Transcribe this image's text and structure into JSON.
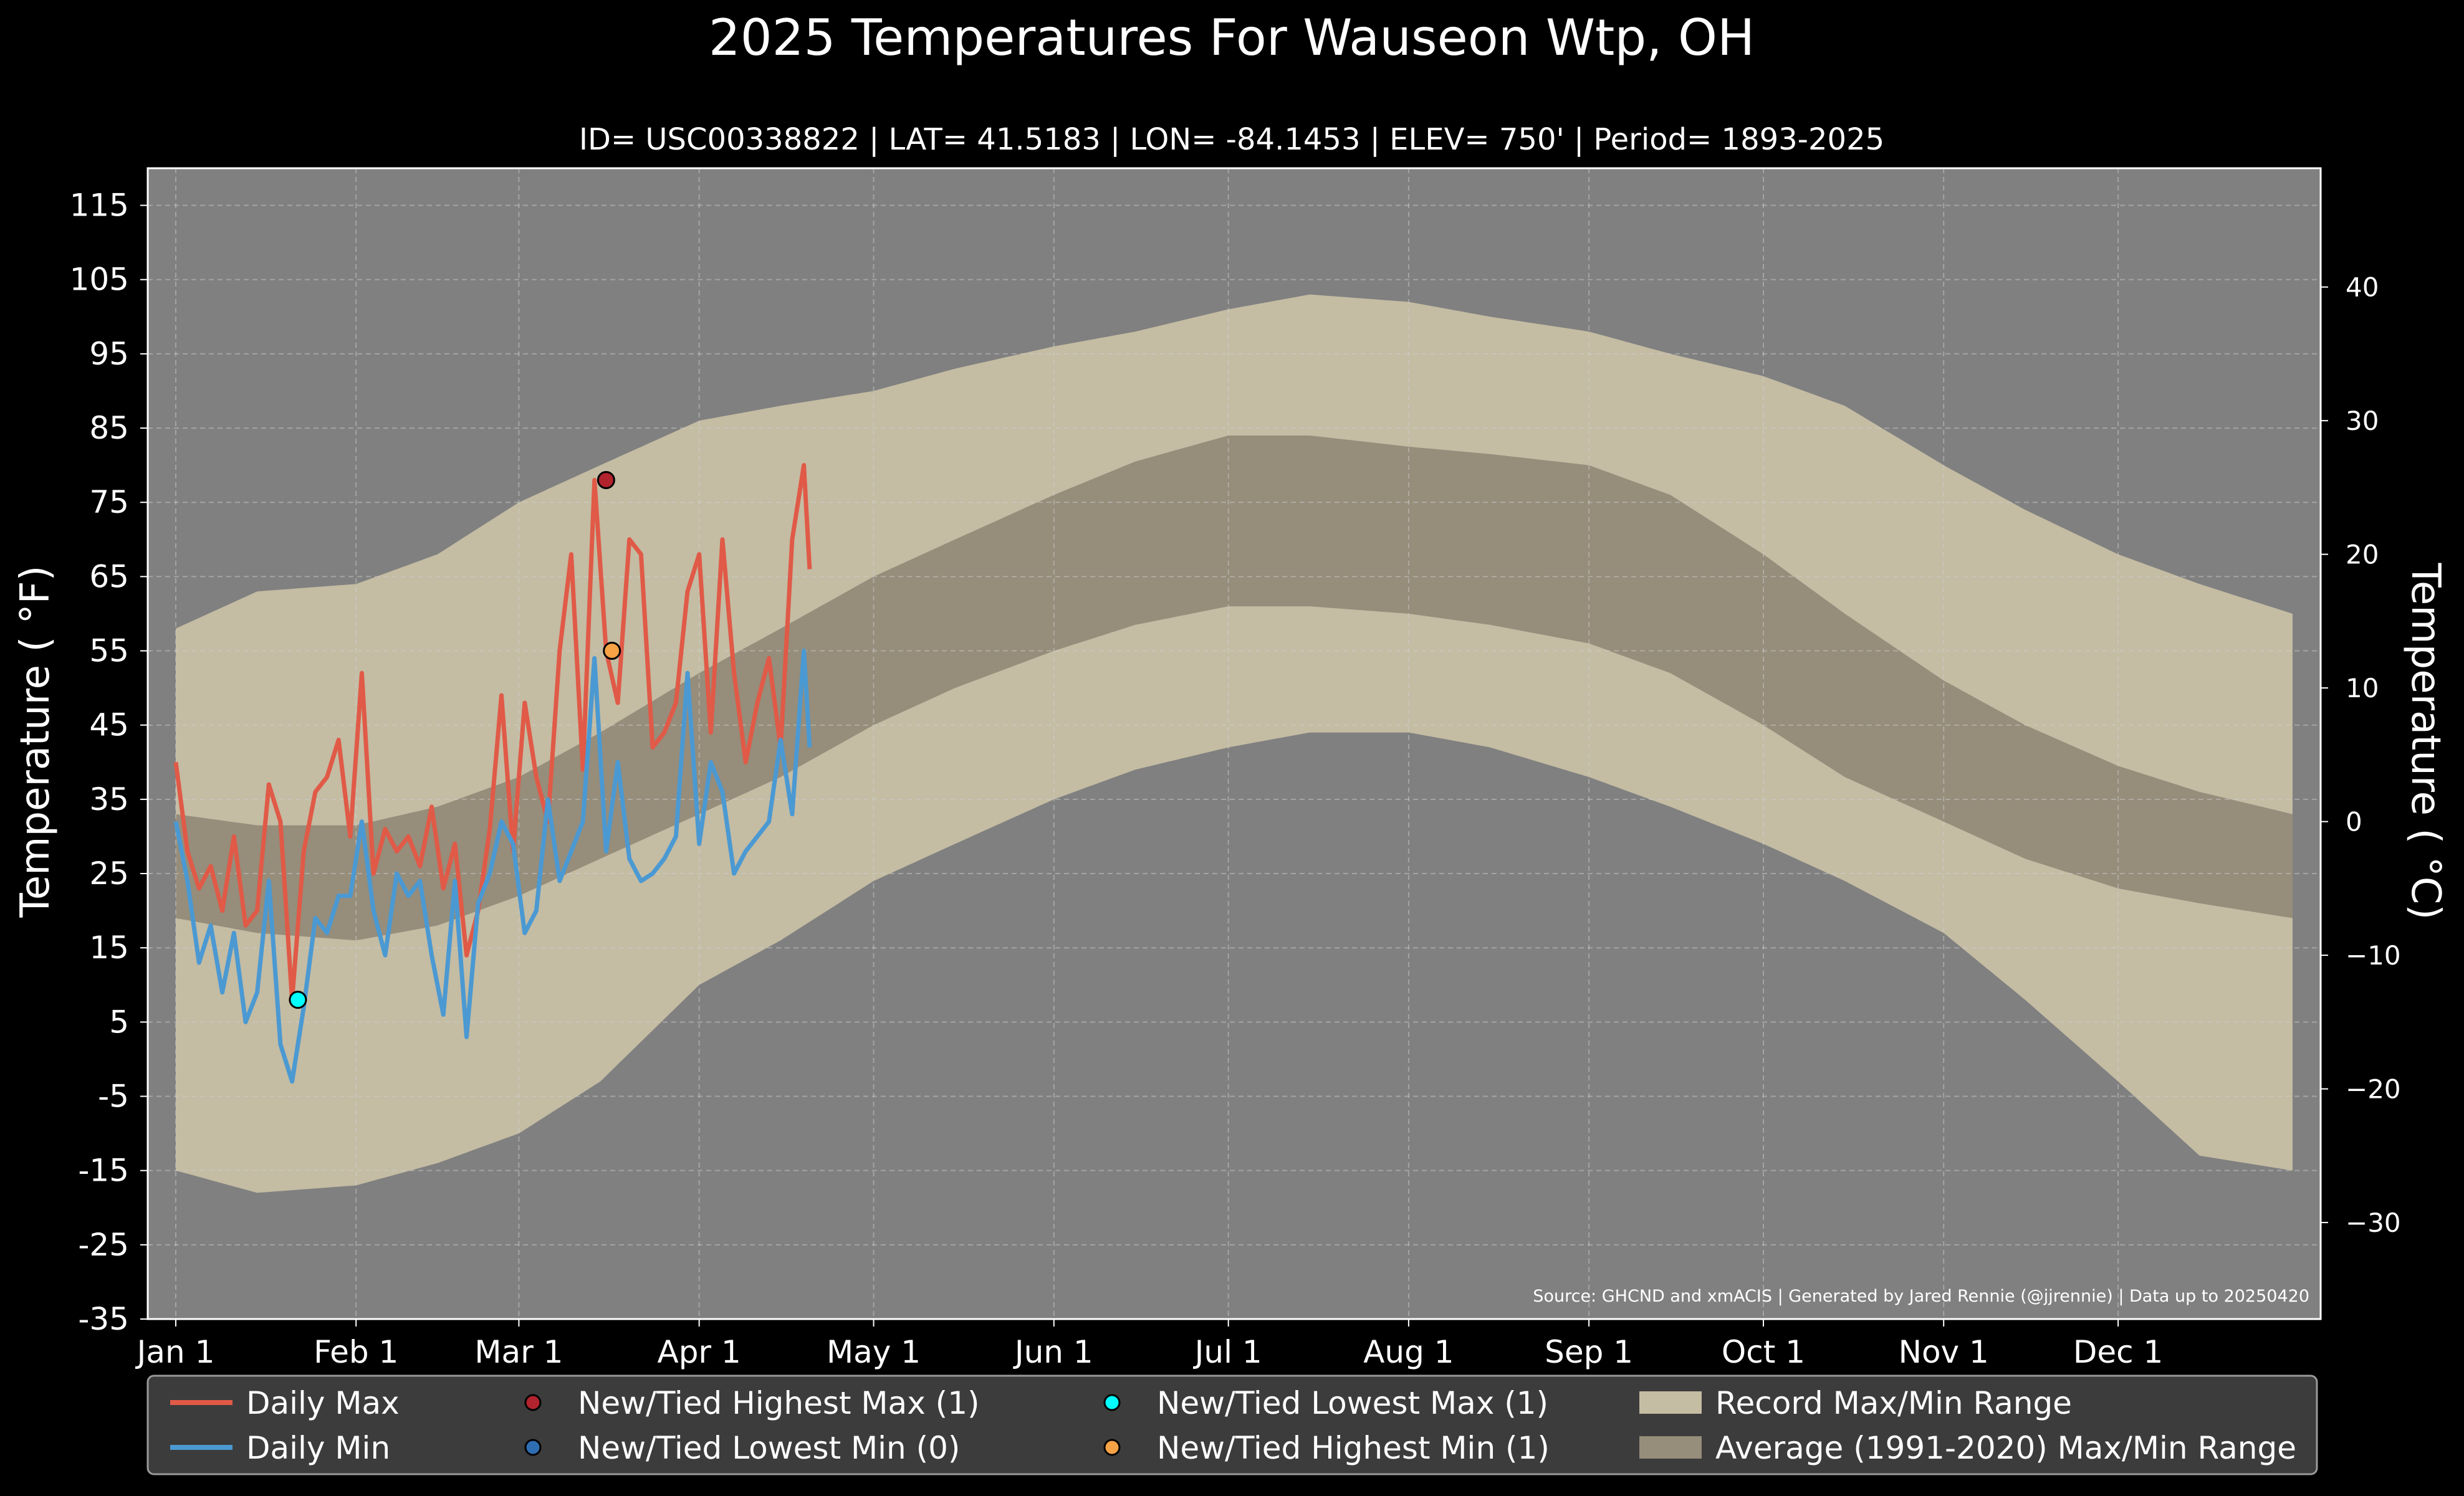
{
  "chart_data": {
    "type": "area",
    "title": "2025 Temperatures For Wauseon Wtp, OH",
    "subtitle": "ID= USC00338822 | LAT= 41.5183 | LON= -84.1453 | ELEV= 750' | Period= 1893-2025",
    "ylabel": "Temperature ( $^\\circ$F)",
    "ylabel_display": "Temperature ( °F)",
    "y2label_display": "Temperature ( °C)",
    "source": "Source: GHCND and xmACIS | Generated by Jared Rennie (@jjrennie) | Data up to 20250420",
    "ylim": [
      -35,
      120
    ],
    "yticks": [
      115,
      105,
      95,
      85,
      75,
      65,
      55,
      45,
      35,
      25,
      15,
      5,
      -5,
      -15,
      -25,
      -35
    ],
    "y2ticks": [
      40,
      30,
      20,
      10,
      0,
      -10,
      -20,
      -30
    ],
    "x_range_days": [
      1,
      365
    ],
    "month_labels": [
      "Jan 1",
      "Feb 1",
      "Mar 1",
      "Apr 1",
      "May 1",
      "Jun 1",
      "Jul 1",
      "Aug 1",
      "Sep 1",
      "Oct 1",
      "Nov 1",
      "Dec 1"
    ],
    "month_start_days": [
      1,
      32,
      60,
      91,
      121,
      152,
      182,
      213,
      244,
      274,
      305,
      335
    ],
    "grid": true,
    "legend_position": "bottom",
    "record_range": {
      "name": "Record Max/Min Range",
      "max_anchors": [
        [
          1,
          58
        ],
        [
          15,
          63
        ],
        [
          32,
          64
        ],
        [
          46,
          68
        ],
        [
          60,
          75
        ],
        [
          74,
          80
        ],
        [
          91,
          86
        ],
        [
          105,
          88
        ],
        [
          121,
          90
        ],
        [
          135,
          93
        ],
        [
          152,
          96
        ],
        [
          166,
          98
        ],
        [
          182,
          101
        ],
        [
          196,
          103
        ],
        [
          213,
          102
        ],
        [
          227,
          100
        ],
        [
          244,
          98
        ],
        [
          258,
          95
        ],
        [
          274,
          92
        ],
        [
          288,
          88
        ],
        [
          305,
          80
        ],
        [
          319,
          74
        ],
        [
          335,
          68
        ],
        [
          349,
          64
        ],
        [
          365,
          60
        ]
      ],
      "min_anchors": [
        [
          1,
          -15
        ],
        [
          15,
          -18
        ],
        [
          32,
          -17
        ],
        [
          46,
          -14
        ],
        [
          60,
          -10
        ],
        [
          74,
          -3
        ],
        [
          91,
          10
        ],
        [
          105,
          16
        ],
        [
          121,
          24
        ],
        [
          135,
          29
        ],
        [
          152,
          35
        ],
        [
          166,
          39
        ],
        [
          182,
          42
        ],
        [
          196,
          44
        ],
        [
          213,
          44
        ],
        [
          227,
          42
        ],
        [
          244,
          38
        ],
        [
          258,
          34
        ],
        [
          274,
          29
        ],
        [
          288,
          24
        ],
        [
          305,
          17
        ],
        [
          319,
          8
        ],
        [
          335,
          -3
        ],
        [
          349,
          -13
        ],
        [
          365,
          -15
        ]
      ]
    },
    "normal_range": {
      "name": "Average (1991-2020) Max/Min Range",
      "max_anchors": [
        [
          1,
          33
        ],
        [
          15,
          31.5
        ],
        [
          32,
          31.5
        ],
        [
          46,
          34
        ],
        [
          60,
          38
        ],
        [
          74,
          44
        ],
        [
          91,
          52
        ],
        [
          105,
          58
        ],
        [
          121,
          65
        ],
        [
          135,
          70
        ],
        [
          152,
          76
        ],
        [
          166,
          80.5
        ],
        [
          182,
          84
        ],
        [
          196,
          84
        ],
        [
          213,
          82.5
        ],
        [
          227,
          81.5
        ],
        [
          244,
          80
        ],
        [
          258,
          76
        ],
        [
          274,
          68
        ],
        [
          288,
          60
        ],
        [
          305,
          51
        ],
        [
          319,
          45
        ],
        [
          335,
          39.5
        ],
        [
          349,
          36
        ],
        [
          365,
          33
        ]
      ],
      "min_anchors": [
        [
          1,
          19
        ],
        [
          15,
          17
        ],
        [
          32,
          16
        ],
        [
          46,
          18
        ],
        [
          60,
          22
        ],
        [
          74,
          27
        ],
        [
          91,
          33
        ],
        [
          105,
          38
        ],
        [
          121,
          45
        ],
        [
          135,
          50
        ],
        [
          152,
          55
        ],
        [
          166,
          58.5
        ],
        [
          182,
          61
        ],
        [
          196,
          61
        ],
        [
          213,
          60
        ],
        [
          227,
          58.5
        ],
        [
          244,
          56
        ],
        [
          258,
          52
        ],
        [
          274,
          45
        ],
        [
          288,
          38
        ],
        [
          305,
          32
        ],
        [
          319,
          27
        ],
        [
          335,
          23
        ],
        [
          349,
          21
        ],
        [
          365,
          19
        ]
      ]
    },
    "series": [
      {
        "name": "Daily Max",
        "color": "#e05a47",
        "x": [
          1,
          3,
          5,
          7,
          9,
          11,
          13,
          15,
          17,
          19,
          21,
          23,
          25,
          27,
          29,
          31,
          33,
          35,
          37,
          39,
          41,
          43,
          45,
          47,
          49,
          51,
          53,
          55,
          57,
          59,
          61,
          63,
          65,
          67,
          69,
          71,
          73,
          75,
          77,
          79,
          81,
          83,
          85,
          87,
          89,
          91,
          93,
          95,
          97,
          99,
          101,
          103,
          105,
          107,
          109,
          110
        ],
        "values": [
          40,
          28,
          23,
          26,
          20,
          30,
          18,
          20,
          37,
          32,
          8,
          28,
          36,
          38,
          43,
          30,
          52,
          25,
          31,
          28,
          30,
          26,
          34,
          23,
          29,
          14,
          20,
          31,
          49,
          28,
          48,
          38,
          32,
          55,
          68,
          39,
          78,
          55,
          48,
          70,
          68,
          42,
          44,
          48,
          63,
          68,
          44,
          70,
          52,
          40,
          48,
          54,
          42,
          70,
          80,
          66
        ]
      },
      {
        "name": "Daily Min",
        "color": "#4b99d2",
        "x": [
          1,
          3,
          5,
          7,
          9,
          11,
          13,
          15,
          17,
          19,
          21,
          23,
          25,
          27,
          29,
          31,
          33,
          35,
          37,
          39,
          41,
          43,
          45,
          47,
          49,
          51,
          53,
          55,
          57,
          59,
          61,
          63,
          65,
          67,
          69,
          71,
          73,
          75,
          77,
          79,
          81,
          83,
          85,
          87,
          89,
          91,
          93,
          95,
          97,
          99,
          101,
          103,
          105,
          107,
          109,
          110
        ],
        "values": [
          32,
          24,
          13,
          18,
          9,
          17,
          5,
          9,
          24,
          2,
          -3,
          7,
          19,
          17,
          22,
          22,
          32,
          20,
          14,
          25,
          22,
          24,
          14,
          6,
          24,
          3,
          21,
          25,
          32,
          29,
          17,
          20,
          35,
          24,
          28,
          32,
          54,
          28,
          40,
          27,
          24,
          25,
          27,
          30,
          52,
          29,
          40,
          36,
          25,
          28,
          30,
          32,
          43,
          33,
          55,
          42
        ]
      }
    ],
    "markers": [
      {
        "name": "New/Tied Highest Max (1)",
        "color": "#b1232d",
        "x": [
          75
        ],
        "values": [
          78
        ]
      },
      {
        "name": "New/Tied Lowest Min (0)",
        "color": "#2f6db3",
        "x": [],
        "values": []
      },
      {
        "name": "New/Tied Lowest Max (1)",
        "color": "#00ffff",
        "x": [
          22
        ],
        "values": [
          8
        ]
      },
      {
        "name": "New/Tied Highest Min (1)",
        "color": "#f7a345",
        "x": [
          76
        ],
        "values": [
          55
        ]
      }
    ]
  },
  "legend": {
    "items": [
      {
        "label": "Daily Max",
        "kind": "line",
        "color": "#e05a47"
      },
      {
        "label": "Daily Min",
        "kind": "line",
        "color": "#4b99d2"
      },
      {
        "label": "New/Tied Highest Max (1)",
        "kind": "dot",
        "color": "#b1232d"
      },
      {
        "label": "New/Tied Lowest Min (0)",
        "kind": "dot",
        "color": "#2f6db3"
      },
      {
        "label": "New/Tied Lowest Max (1)",
        "kind": "dot",
        "color": "#00ffff"
      },
      {
        "label": "New/Tied Highest Min (1)",
        "kind": "dot",
        "color": "#f7a345"
      },
      {
        "label": "Record Max/Min Range",
        "kind": "patch",
        "color": "#c4bca3"
      },
      {
        "label": "Average (1991-2020) Max/Min Range",
        "kind": "patch",
        "color": "#968d7b"
      }
    ]
  },
  "colors": {
    "background": "#000000",
    "plot_background": "#808080",
    "record_fill": "#c4bca3",
    "normal_fill": "#968d7b",
    "grid": "#d0d0d0",
    "legend_background": "#3c3c3c"
  }
}
